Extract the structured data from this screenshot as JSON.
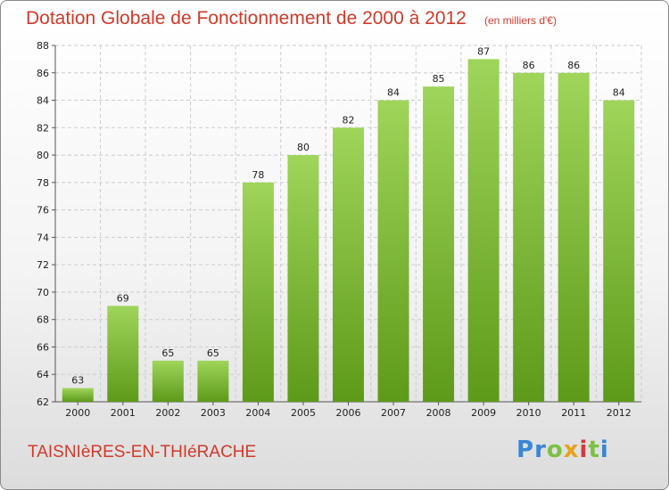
{
  "header": {
    "title": "Dotation Globale de Fonctionnement de 2000 à 2012",
    "subtitle": "(en milliers d'€)"
  },
  "footer": {
    "commune": "TAISNIèRES-EN-THIéRACHE",
    "logo_text": "Proxiti"
  },
  "colors": {
    "title": "#d03a2a",
    "bar_light": "#9fd55a",
    "bar_dark": "#5e9a1a",
    "grid": "#cccccc"
  },
  "chart_data": {
    "type": "bar",
    "title": "Dotation Globale de Fonctionnement de 2000 à 2012",
    "subtitle": "(en milliers d'€)",
    "categories": [
      "2000",
      "2001",
      "2002",
      "2003",
      "2004",
      "2005",
      "2006",
      "2007",
      "2008",
      "2009",
      "2010",
      "2011",
      "2012"
    ],
    "values": [
      63,
      69,
      65,
      65,
      78,
      80,
      82,
      84,
      85,
      87,
      86,
      86,
      84
    ],
    "ylim": [
      62,
      88
    ],
    "yticks": [
      62,
      64,
      66,
      68,
      70,
      72,
      74,
      76,
      78,
      80,
      82,
      84,
      86,
      88
    ],
    "grid": "horizontal dashed",
    "xlabel": "",
    "ylabel": ""
  }
}
